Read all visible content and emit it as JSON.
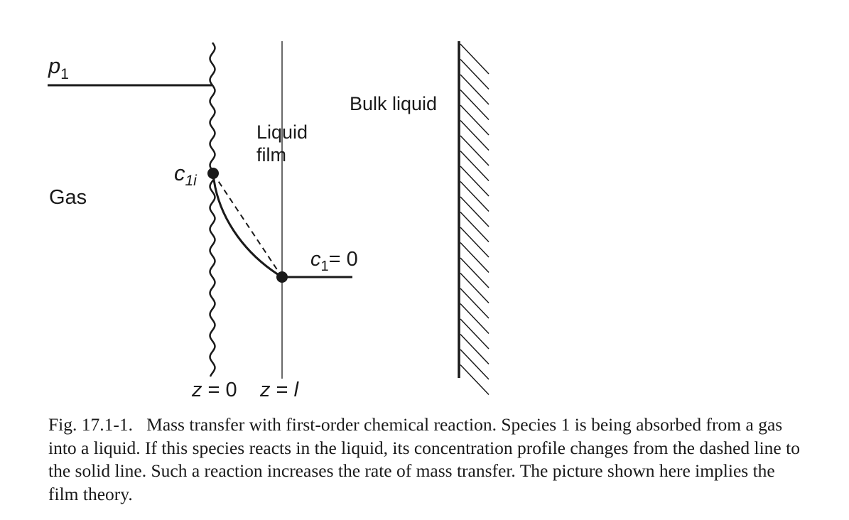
{
  "labels": {
    "p1_base": "p",
    "p1_sub": "1",
    "gas": "Gas",
    "c1i_base": "c",
    "c1i_sub": "1i",
    "liquid_film_line1": "Liquid",
    "liquid_film_line2": "film",
    "bulk_liquid": "Bulk liquid",
    "c1_zero_base": "c",
    "c1_zero_sub": "1",
    "c1_zero_rest": "= 0",
    "z0_var": "z",
    "z0_rest": " = 0",
    "zl_var": "z",
    "zl_eq": " = ",
    "zl_l": "l"
  },
  "caption": {
    "figure_number": "Fig. 17.1-1.",
    "text": "Mass transfer with first-order chemical reaction. Species 1 is being absorbed from a gas into a liquid. If this species reacts in the liquid, its concentration profile changes from the dashed line to the solid line. Such a reaction increases the rate of mass transfer. The picture shown here implies the film theory."
  },
  "colors": {
    "ink": "#1a1a1a",
    "background": "#ffffff"
  }
}
